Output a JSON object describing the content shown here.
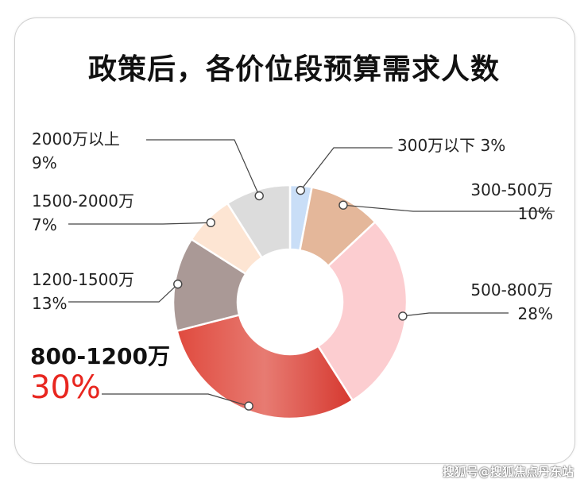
{
  "title": "政策后，各价位段预算需求人数",
  "watermark": "搜狐号@搜狐焦点丹东站",
  "chart_data": {
    "type": "pie",
    "title": "政策后，各价位段预算需求人数",
    "donut": true,
    "slices": [
      {
        "category": "300万以下",
        "value": 3,
        "label": "3%",
        "color": "#c9def7"
      },
      {
        "category": "300-500万",
        "value": 10,
        "label": "10%",
        "color": "#e4b79a"
      },
      {
        "category": "500-800万",
        "value": 28,
        "label": "28%",
        "color": "#fccdd0"
      },
      {
        "category": "800-1200万",
        "value": 30,
        "label": "30%",
        "color": "#dc4a40"
      },
      {
        "category": "1200-1500万",
        "value": 13,
        "label": "13%",
        "color": "#aa9996"
      },
      {
        "category": "1500-2000万",
        "value": 7,
        "label": "7%",
        "color": "#fde5d3"
      },
      {
        "category": "2000万以上",
        "value": 9,
        "label": "9%",
        "color": "#dcdcdc"
      }
    ]
  }
}
